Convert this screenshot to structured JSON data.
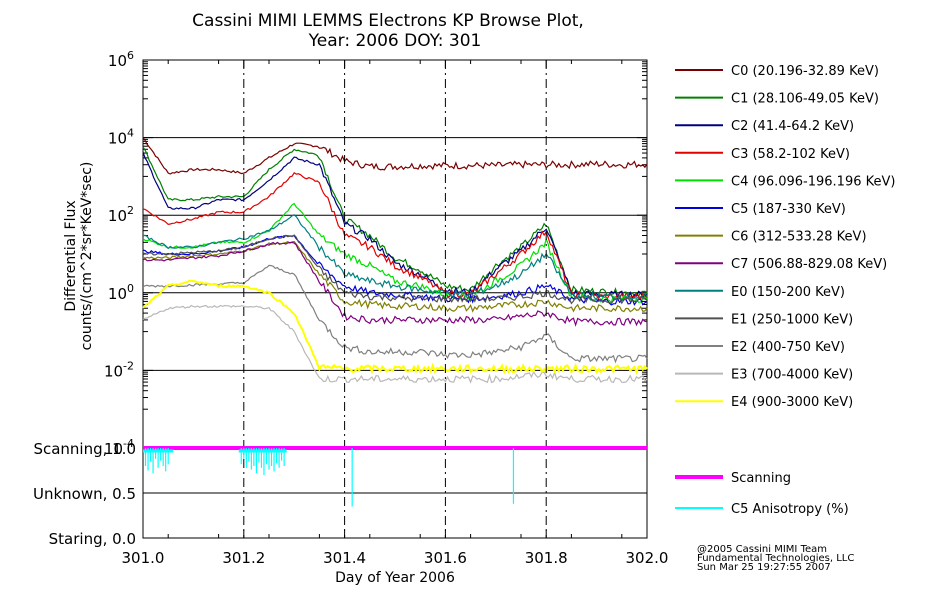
{
  "chart_data": {
    "type": "line",
    "title_line1": "Cassini MIMI LEMMS Electrons KP Browse Plot,",
    "title_line2": "Year: 2006 DOY: 301",
    "xlabel": "Day of Year 2006",
    "ylabel_line1": "Differential Flux",
    "ylabel_line2": "counts/(cm^2*sr*KeV*sec)",
    "xlim": [
      301.0,
      302.0
    ],
    "ylim": [
      0.0001,
      1000000
    ],
    "yscale": "log",
    "x_ticks": [
      "301.0",
      "301.2",
      "301.4",
      "301.6",
      "301.8",
      "302.0"
    ],
    "y_ticks": [
      {
        "base": "10",
        "exp": "6",
        "value": 1000000
      },
      {
        "base": "10",
        "exp": "4",
        "value": 10000
      },
      {
        "base": "10",
        "exp": "2",
        "value": 100
      },
      {
        "base": "10",
        "exp": "0",
        "value": 1
      },
      {
        "base": "10",
        "exp": "-2",
        "value": 0.01
      },
      {
        "base": "10",
        "exp": "-4",
        "value": 0.0001
      }
    ],
    "vertical_markers": [
      301.2,
      301.4,
      301.6,
      301.8
    ],
    "legend_position": "right",
    "x": [
      301.0,
      301.05,
      301.1,
      301.15,
      301.2,
      301.25,
      301.3,
      301.35,
      301.4,
      301.45,
      301.5,
      301.55,
      301.6,
      301.65,
      301.7,
      301.75,
      301.8,
      301.85,
      301.9,
      301.95,
      302.0
    ],
    "series": [
      {
        "name": "C0 (20.196-32.89 KeV)",
        "color": "#7a0000",
        "values": [
          10000,
          1200,
          1500,
          1500,
          1200,
          3000,
          7000,
          6000,
          2500,
          1800,
          1800,
          1900,
          1900,
          1900,
          1900,
          2000,
          2000,
          2000,
          2100,
          2000,
          2100
        ]
      },
      {
        "name": "C1 (28.106-49.05 KeV)",
        "color": "#008000",
        "values": [
          6000,
          250,
          250,
          300,
          300,
          1500,
          5000,
          3500,
          80,
          30,
          8,
          4,
          1.5,
          1.2,
          5,
          15,
          60,
          1.2,
          1.1,
          1.0,
          1.0
        ]
      },
      {
        "name": "C2 (41.4-64.2 KeV)",
        "color": "#000080",
        "values": [
          4000,
          150,
          150,
          250,
          250,
          800,
          3000,
          2000,
          60,
          25,
          6,
          3,
          1.2,
          1.0,
          4,
          12,
          50,
          1.0,
          0.9,
          0.9,
          0.9
        ]
      },
      {
        "name": "C3 (58.2-102 KeV)",
        "color": "#e00000",
        "values": [
          150,
          60,
          80,
          120,
          120,
          300,
          1200,
          700,
          30,
          15,
          5,
          2.5,
          1.0,
          0.9,
          3,
          10,
          40,
          0.9,
          0.8,
          0.8,
          0.8
        ]
      },
      {
        "name": "C4 (96.096-196.196 KeV)",
        "color": "#00e000",
        "values": [
          25,
          15,
          15,
          20,
          20,
          40,
          200,
          30,
          10,
          5,
          2,
          1.5,
          0.9,
          0.8,
          2,
          5,
          20,
          0.8,
          0.7,
          0.7,
          0.7
        ]
      },
      {
        "name": "C5 (187-330 KeV)",
        "color": "#0000e0",
        "values": [
          12,
          10,
          10,
          12,
          15,
          25,
          30,
          5,
          1.5,
          1.0,
          0.9,
          0.8,
          0.7,
          0.7,
          0.8,
          1.0,
          1.5,
          0.7,
          0.6,
          0.6,
          0.6
        ]
      },
      {
        "name": "C6 (312-533.28 KeV)",
        "color": "#808000",
        "values": [
          8,
          8,
          9,
          10,
          12,
          18,
          20,
          3,
          0.6,
          0.5,
          0.45,
          0.45,
          0.4,
          0.4,
          0.45,
          0.5,
          0.6,
          0.4,
          0.4,
          0.4,
          0.4
        ]
      },
      {
        "name": "C7 (506.88-829.08 KeV)",
        "color": "#800080",
        "values": [
          7,
          7,
          8,
          9,
          12,
          18,
          20,
          2,
          0.25,
          0.2,
          0.2,
          0.2,
          0.2,
          0.2,
          0.2,
          0.25,
          0.3,
          0.18,
          0.18,
          0.18,
          0.18
        ]
      },
      {
        "name": "E0 (150-200 KeV)",
        "color": "#008080",
        "values": [
          30,
          15,
          15,
          20,
          25,
          40,
          100,
          15,
          3,
          2,
          1.5,
          1.2,
          1.0,
          0.9,
          1.5,
          3,
          10,
          0.9,
          0.8,
          0.8,
          0.8
        ]
      },
      {
        "name": "E1 (250-1000 KeV)",
        "color": "#505050",
        "values": [
          10,
          10,
          11,
          12,
          15,
          25,
          30,
          4,
          1.0,
          0.8,
          0.75,
          0.7,
          0.7,
          0.7,
          0.7,
          0.8,
          1.0,
          0.65,
          0.65,
          0.65,
          0.65
        ]
      },
      {
        "name": "E2 (400-750 KeV)",
        "color": "#808080",
        "values": [
          1.5,
          1.5,
          1.6,
          1.7,
          1.8,
          5,
          3,
          0.2,
          0.04,
          0.03,
          0.03,
          0.03,
          0.025,
          0.025,
          0.03,
          0.04,
          0.08,
          0.02,
          0.02,
          0.02,
          0.02
        ]
      },
      {
        "name": "E3 (700-4000 KeV)",
        "color": "#b8b8b8",
        "values": [
          0.2,
          0.4,
          0.45,
          0.45,
          0.45,
          0.4,
          0.1,
          0.006,
          0.006,
          0.006,
          0.006,
          0.006,
          0.006,
          0.006,
          0.006,
          0.007,
          0.008,
          0.006,
          0.006,
          0.006,
          0.006
        ]
      },
      {
        "name": "E4 (900-3000 KeV)",
        "color": "#ffff00",
        "values": [
          0.4,
          1.5,
          2.0,
          1.5,
          1.5,
          1.0,
          0.3,
          0.012,
          0.011,
          0.011,
          0.011,
          0.011,
          0.011,
          0.011,
          0.011,
          0.011,
          0.011,
          0.011,
          0.011,
          0.011,
          0.011
        ]
      }
    ],
    "status_panel": {
      "ylim": [
        0.0,
        1.0
      ],
      "y_ticks": [
        {
          "label": "Scanning, 1.0",
          "value": 1.0
        },
        {
          "label": "Unknown, 0.5",
          "value": 0.5
        },
        {
          "label": "Staring, 0.0",
          "value": 0.0
        }
      ],
      "series": [
        {
          "name": "Scanning",
          "color": "#ff00ff",
          "values": [
            1.0,
            1.0,
            1.0,
            1.0,
            1.0,
            1.0,
            1.0,
            1.0,
            1.0,
            1.0,
            1.0,
            1.0,
            1.0,
            1.0,
            1.0,
            1.0,
            1.0,
            1.0,
            1.0,
            1.0,
            1.0
          ]
        },
        {
          "name": "C5 Anisotropy (%)",
          "color": "#00ffff",
          "spikes": [
            [
              301.005,
              0.8
            ],
            [
              301.01,
              0.75
            ],
            [
              301.015,
              0.85
            ],
            [
              301.02,
              0.72
            ],
            [
              301.025,
              0.88
            ],
            [
              301.03,
              0.78
            ],
            [
              301.035,
              0.86
            ],
            [
              301.04,
              0.8
            ],
            [
              301.045,
              0.74
            ],
            [
              301.05,
              0.82
            ],
            [
              301.195,
              0.82
            ],
            [
              301.2,
              0.88
            ],
            [
              301.205,
              0.78
            ],
            [
              301.21,
              0.85
            ],
            [
              301.215,
              0.76
            ],
            [
              301.22,
              0.8
            ],
            [
              301.225,
              0.72
            ],
            [
              301.23,
              0.84
            ],
            [
              301.235,
              0.78
            ],
            [
              301.24,
              0.7
            ],
            [
              301.245,
              0.82
            ],
            [
              301.25,
              0.76
            ],
            [
              301.255,
              0.8
            ],
            [
              301.26,
              0.74
            ],
            [
              301.265,
              0.83
            ],
            [
              301.27,
              0.78
            ],
            [
              301.275,
              0.86
            ],
            [
              301.28,
              0.8
            ],
            [
              301.415,
              0.35
            ],
            [
              301.735,
              0.38
            ]
          ]
        }
      ]
    }
  },
  "credits": {
    "line1": "@2005 Cassini MIMI Team",
    "line2": "Fundamental Technologies, LLC",
    "line3": "Sun Mar 25 19:27:55 2007"
  }
}
